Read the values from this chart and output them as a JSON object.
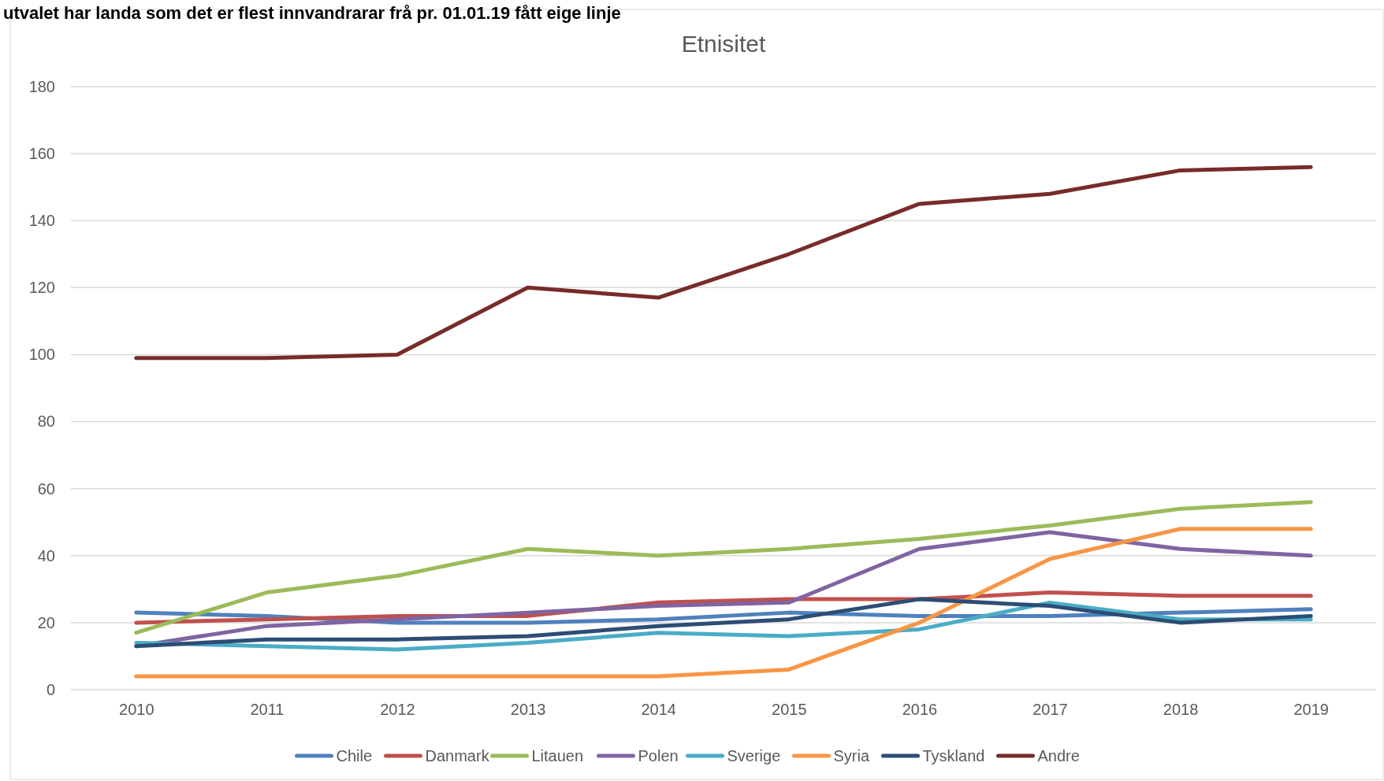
{
  "chart_data": {
    "type": "line",
    "title": "Etnisitet",
    "annotations": [
      "utvalet har landa som det er flest innvandrarar frå pr. 01.01.19 fått eige linje"
    ],
    "categories": [
      "2010",
      "2011",
      "2012",
      "2013",
      "2014",
      "2015",
      "2016",
      "2017",
      "2018",
      "2019"
    ],
    "ylim": [
      0,
      180
    ],
    "yticks": [
      0,
      20,
      40,
      60,
      80,
      100,
      120,
      140,
      160,
      180
    ],
    "grid": "y",
    "legend": "bottom",
    "marker": "none",
    "line_style": "solid",
    "series": [
      {
        "name": "Chile",
        "color": "#4f81bd",
        "values": [
          23,
          22,
          20,
          20,
          21,
          23,
          22,
          22,
          23,
          24
        ]
      },
      {
        "name": "Danmark",
        "color": "#c0504d",
        "values": [
          20,
          21,
          22,
          22,
          26,
          27,
          27,
          29,
          28,
          28
        ]
      },
      {
        "name": "Litauen",
        "color": "#9bbb59",
        "values": [
          17,
          29,
          34,
          42,
          40,
          42,
          45,
          49,
          54,
          56
        ]
      },
      {
        "name": "Polen",
        "color": "#8064a2",
        "values": [
          13,
          19,
          21,
          23,
          25,
          26,
          42,
          47,
          42,
          40
        ]
      },
      {
        "name": "Sverige",
        "color": "#4bacc6",
        "values": [
          14,
          13,
          12,
          14,
          17,
          16,
          18,
          26,
          21,
          21
        ]
      },
      {
        "name": "Syria",
        "color": "#f79646",
        "values": [
          4,
          4,
          4,
          4,
          4,
          6,
          20,
          39,
          48,
          48
        ]
      },
      {
        "name": "Tyskland",
        "color": "#2c4d75",
        "values": [
          13,
          15,
          15,
          16,
          19,
          21,
          27,
          25,
          20,
          22
        ]
      },
      {
        "name": "Andre",
        "color": "#772c2a",
        "values": [
          99,
          99,
          100,
          120,
          117,
          130,
          145,
          148,
          155,
          156
        ]
      }
    ]
  }
}
